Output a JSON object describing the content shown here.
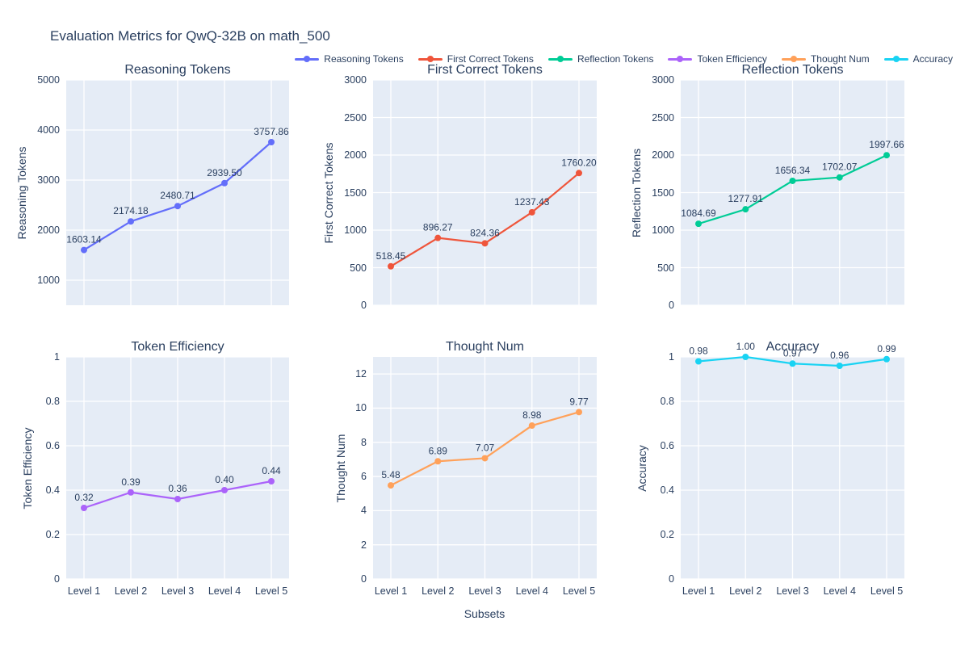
{
  "page": {
    "title": "Evaluation Metrics for QwQ-32B on math_500",
    "xlabel": "Subsets",
    "font_color": "#2a3f5f",
    "plot_bg_color": "#e5ecf6",
    "grid_color": "#ffffff",
    "background_color": "#ffffff"
  },
  "legend": {
    "position": "top-right horizontal",
    "items": [
      {
        "label": "Reasoning Tokens",
        "color": "#636efa"
      },
      {
        "label": "First Correct Tokens",
        "color": "#ef553b"
      },
      {
        "label": "Reflection Tokens",
        "color": "#00cc96"
      },
      {
        "label": "Token Efficiency",
        "color": "#ab63fa"
      },
      {
        "label": "Thought Num",
        "color": "#ffa15a"
      },
      {
        "label": "Accuracy",
        "color": "#19d3f3"
      }
    ]
  },
  "chart_data": [
    {
      "type": "line",
      "title": "Reasoning Tokens",
      "ylabel": "Reasoning Tokens",
      "color": "#636efa",
      "categories": [
        "Level 1",
        "Level 2",
        "Level 3",
        "Level 4",
        "Level 5"
      ],
      "values": [
        1603.14,
        2174.18,
        2480.71,
        2939.5,
        3757.86
      ],
      "point_labels": [
        "1603.14",
        "2174.18",
        "2480.71",
        "2939.50",
        "3757.86"
      ],
      "ylim": [
        500,
        5000
      ],
      "yticks": [
        1000,
        2000,
        3000,
        4000,
        5000
      ],
      "ytick_labels": [
        "1000",
        "2000",
        "3000",
        "4000",
        "5000"
      ],
      "show_x_tick_labels": false,
      "grid": true
    },
    {
      "type": "line",
      "title": "First Correct Tokens",
      "ylabel": "First Correct Tokens",
      "color": "#ef553b",
      "categories": [
        "Level 1",
        "Level 2",
        "Level 3",
        "Level 4",
        "Level 5"
      ],
      "values": [
        518.45,
        896.27,
        824.36,
        1237.43,
        1760.2
      ],
      "point_labels": [
        "518.45",
        "896.27",
        "824.36",
        "1237.43",
        "1760.20"
      ],
      "ylim": [
        0,
        3000
      ],
      "yticks": [
        0,
        500,
        1000,
        1500,
        2000,
        2500,
        3000
      ],
      "ytick_labels": [
        "0",
        "500",
        "1000",
        "1500",
        "2000",
        "2500",
        "3000"
      ],
      "show_x_tick_labels": false,
      "grid": true
    },
    {
      "type": "line",
      "title": "Reflection Tokens",
      "ylabel": "Reflection Tokens",
      "color": "#00cc96",
      "categories": [
        "Level 1",
        "Level 2",
        "Level 3",
        "Level 4",
        "Level 5"
      ],
      "values": [
        1084.69,
        1277.91,
        1656.34,
        1702.07,
        1997.66
      ],
      "point_labels": [
        "1084.69",
        "1277.91",
        "1656.34",
        "1702.07",
        "1997.66"
      ],
      "ylim": [
        0,
        3000
      ],
      "yticks": [
        0,
        500,
        1000,
        1500,
        2000,
        2500,
        3000
      ],
      "ytick_labels": [
        "0",
        "500",
        "1000",
        "1500",
        "2000",
        "2500",
        "3000"
      ],
      "show_x_tick_labels": false,
      "grid": true
    },
    {
      "type": "line",
      "title": "Token Efficiency",
      "ylabel": "Token Efficiency",
      "color": "#ab63fa",
      "categories": [
        "Level 1",
        "Level 2",
        "Level 3",
        "Level 4",
        "Level 5"
      ],
      "values": [
        0.32,
        0.39,
        0.36,
        0.4,
        0.44
      ],
      "point_labels": [
        "0.32",
        "0.39",
        "0.36",
        "0.40",
        "0.44"
      ],
      "ylim": [
        0,
        1
      ],
      "yticks": [
        0,
        0.2,
        0.4,
        0.6,
        0.8,
        1
      ],
      "ytick_labels": [
        "0",
        "0.2",
        "0.4",
        "0.6",
        "0.8",
        "1"
      ],
      "show_x_tick_labels": true,
      "grid": true
    },
    {
      "type": "line",
      "title": "Thought Num",
      "ylabel": "Thought Num",
      "color": "#ffa15a",
      "categories": [
        "Level 1",
        "Level 2",
        "Level 3",
        "Level 4",
        "Level 5"
      ],
      "values": [
        5.48,
        6.89,
        7.07,
        8.98,
        9.77
      ],
      "point_labels": [
        "5.48",
        "6.89",
        "7.07",
        "8.98",
        "9.77"
      ],
      "ylim": [
        0,
        13
      ],
      "yticks": [
        0,
        2,
        4,
        6,
        8,
        10,
        12
      ],
      "ytick_labels": [
        "0",
        "2",
        "4",
        "6",
        "8",
        "10",
        "12"
      ],
      "show_x_tick_labels": true,
      "grid": true
    },
    {
      "type": "line",
      "title": "Accuracy",
      "ylabel": "Accuracy",
      "color": "#19d3f3",
      "categories": [
        "Level 1",
        "Level 2",
        "Level 3",
        "Level 4",
        "Level 5"
      ],
      "values": [
        0.98,
        1.0,
        0.97,
        0.96,
        0.99
      ],
      "point_labels": [
        "0.98",
        "1.00",
        "0.97",
        "0.96",
        "0.99"
      ],
      "ylim": [
        0,
        1
      ],
      "yticks": [
        0,
        0.2,
        0.4,
        0.6,
        0.8,
        1
      ],
      "ytick_labels": [
        "0",
        "0.2",
        "0.4",
        "0.6",
        "0.8",
        "1"
      ],
      "show_x_tick_labels": true,
      "grid": true
    }
  ]
}
